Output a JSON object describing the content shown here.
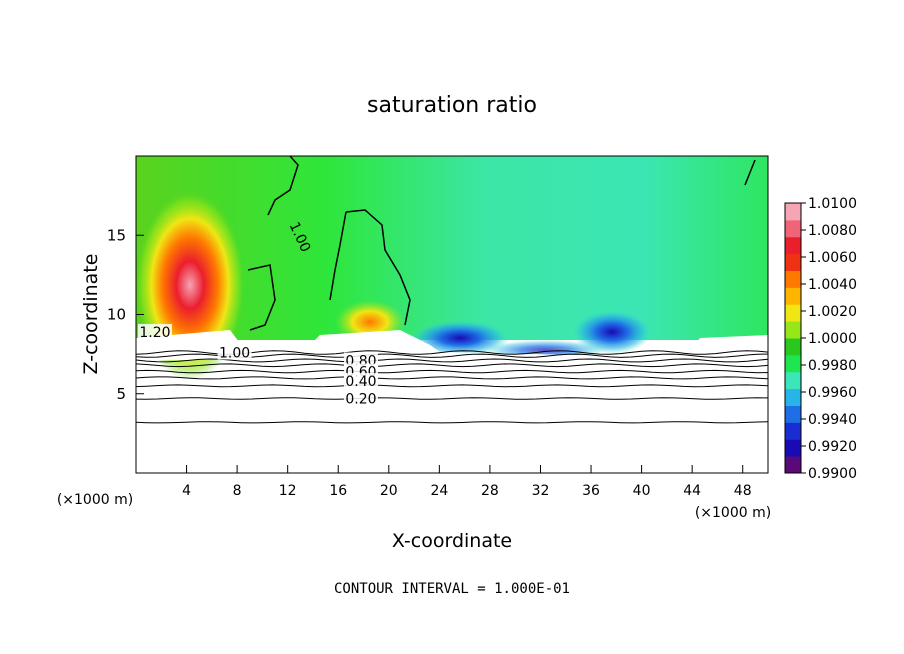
{
  "chart_data": {
    "type": "heatmap",
    "title": "saturation ratio",
    "xlabel": "X-coordinate",
    "ylabel": "Z-coordinate",
    "x_unit": "(×1000 m)",
    "y_unit": "(×1000 m)",
    "xlim": [
      0,
      50
    ],
    "ylim": [
      0,
      20
    ],
    "x_ticks": [
      4,
      8,
      12,
      16,
      20,
      24,
      28,
      32,
      36,
      40,
      44,
      48
    ],
    "y_ticks": [
      5,
      10,
      15
    ],
    "footer": "CONTOUR INTERVAL = 1.000E-01",
    "colorbar": {
      "min": 0.99,
      "max": 1.01,
      "labels": [
        "1.0100",
        "1.0080",
        "1.0060",
        "1.0040",
        "1.0020",
        "1.0000",
        "0.9980",
        "0.9960",
        "0.9940",
        "0.9920",
        "0.9900"
      ],
      "colors": [
        "#5a0a78",
        "#1a0ab4",
        "#1a2dd2",
        "#1e6ee6",
        "#28b4e6",
        "#3ce6b9",
        "#1ee650",
        "#28c81e",
        "#96e619",
        "#f0e614",
        "#ffb400",
        "#ff7800",
        "#f03214",
        "#eb1e2d",
        "#f06478",
        "#f5a5b4"
      ]
    },
    "contour_labels": [
      "1.20",
      "1.00",
      "1.00",
      "0.80",
      "0.60",
      "0.40",
      "0.20"
    ],
    "contour_levels": [
      0.2,
      0.3,
      0.4,
      0.5,
      0.6,
      0.7,
      0.8,
      0.9,
      1.0
    ],
    "contour_heights": [
      3.2,
      4.7,
      5.5,
      6.0,
      6.4,
      6.8,
      7.1,
      7.4,
      7.6
    ]
  }
}
